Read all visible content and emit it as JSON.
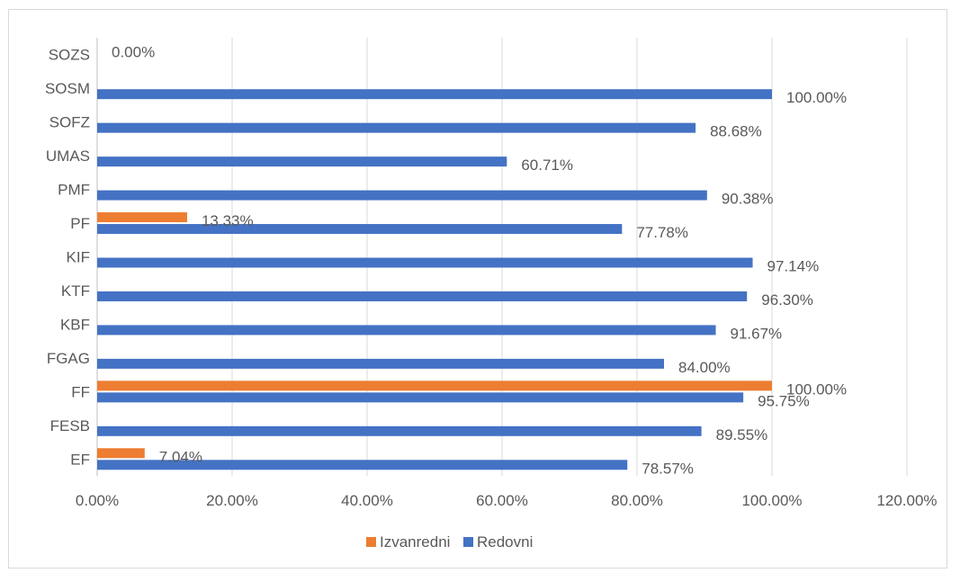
{
  "chart_data": {
    "type": "bar",
    "orientation": "horizontal",
    "categories": [
      "EF",
      "FESB",
      "FF",
      "FGAG",
      "KBF",
      "KTF",
      "KIF",
      "PF",
      "PMF",
      "UMAS",
      "SOFZ",
      "SOSM",
      "SOZS"
    ],
    "series": [
      {
        "name": "Redovni",
        "color": "#4472c4",
        "values": [
          78.57,
          89.55,
          95.75,
          84.0,
          91.67,
          96.3,
          97.14,
          77.78,
          90.38,
          60.71,
          88.68,
          100.0,
          null
        ],
        "labels": [
          "78.57%",
          "89.55%",
          "95.75%",
          "84.00%",
          "91.67%",
          "96.30%",
          "97.14%",
          "77.78%",
          "90.38%",
          "60.71%",
          "88.68%",
          "100.00%",
          null
        ]
      },
      {
        "name": "Izvanredni",
        "color": "#ed7d31",
        "values": [
          7.04,
          null,
          100.0,
          null,
          null,
          null,
          null,
          13.33,
          null,
          null,
          null,
          null,
          0.0
        ],
        "labels": [
          "7.04%",
          null,
          "100.00%",
          null,
          null,
          null,
          null,
          "13.33%",
          null,
          null,
          null,
          null,
          "0.00%"
        ]
      }
    ],
    "x_ticks": [
      "0.00%",
      "20.00%",
      "40.00%",
      "60.00%",
      "80.00%",
      "100.00%",
      "120.00%"
    ],
    "xlim": [
      0,
      120
    ],
    "grid": true,
    "legend_position": "bottom",
    "legend": [
      "Izvanredni",
      "Redovni"
    ],
    "title": "",
    "xlabel": "",
    "ylabel": ""
  }
}
